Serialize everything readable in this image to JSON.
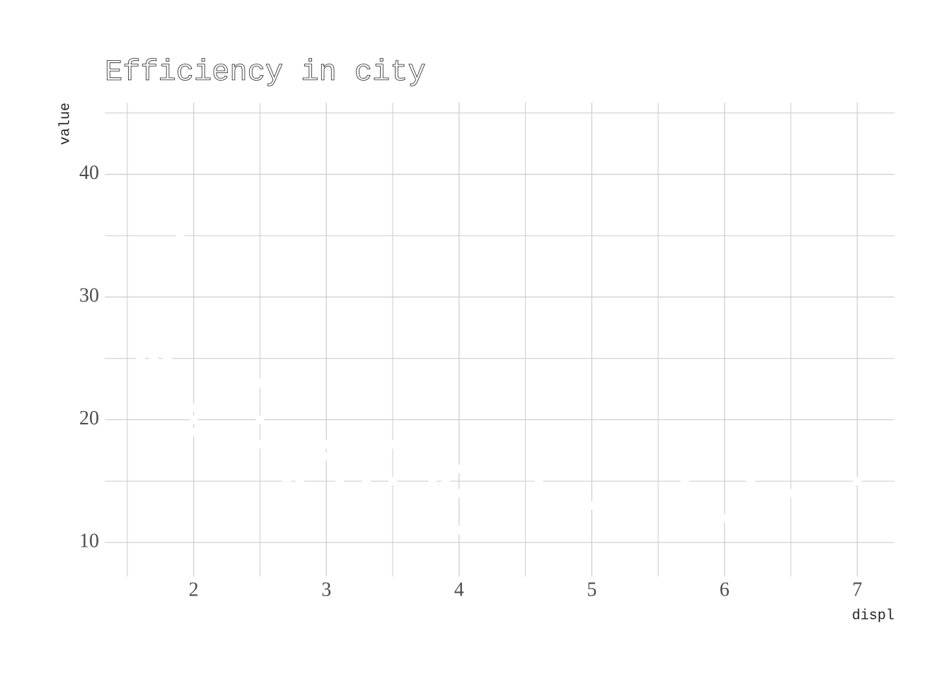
{
  "chart_data": {
    "type": "scatter",
    "title": "Efficiency in city",
    "x_label": "displ",
    "y_label": "value",
    "x": [
      1.6,
      1.7,
      1.8,
      1.9,
      2.0,
      2.0,
      2.0,
      2.5,
      2.5,
      2.5,
      2.7,
      2.8,
      3.0,
      3.0,
      3.1,
      3.3,
      3.5,
      3.5,
      3.8,
      3.9,
      4.0,
      4.0,
      4.0,
      4.6,
      5.0,
      5.7,
      6.0,
      6.2,
      6.5,
      7.0
    ],
    "values": [
      25,
      25,
      25,
      35,
      21,
      20,
      19,
      23,
      20,
      18,
      15,
      15,
      18,
      17,
      15,
      15,
      18,
      15,
      15,
      15,
      16,
      14,
      11,
      15,
      13,
      15,
      12,
      15,
      14,
      15
    ],
    "color": "#ffffff",
    "xlim": [
      1.33,
      7.28
    ],
    "ylim": [
      7.23,
      45.85
    ],
    "xticks": [
      2,
      3,
      4,
      5,
      6,
      7
    ],
    "yticks": [
      10,
      20,
      30,
      40
    ],
    "xminor": [
      1.5,
      2.5,
      3.5,
      4.5,
      5.5,
      6.5
    ],
    "yminor": [
      15,
      25,
      35,
      45
    ],
    "grid": true
  }
}
